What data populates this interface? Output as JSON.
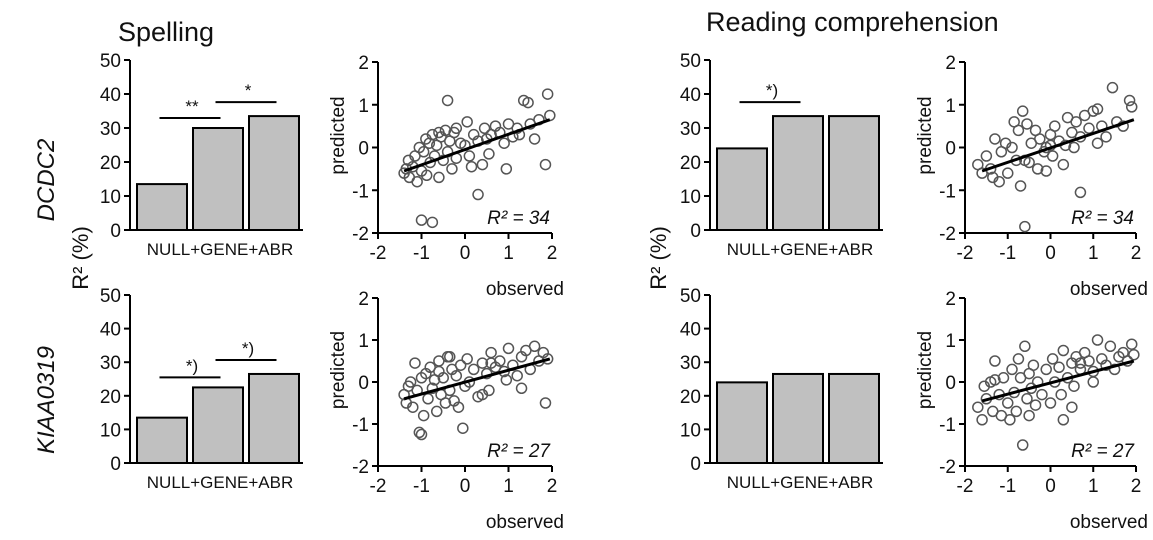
{
  "headings": {
    "left": "Spelling",
    "right": "Reading comprehension"
  },
  "row_labels": [
    "DCDC2",
    "KIAA0319"
  ],
  "shared_ylabel": "R² (%)",
  "colors": {
    "bar_fill": "#c0c0c0",
    "stroke": "#000000",
    "marker": "#555555",
    "background": "#ffffff"
  },
  "chart_data": [
    {
      "type": "bar",
      "panel": "spelling-dcdc2",
      "categories": [
        "NULL",
        "+GENE",
        "+ABR"
      ],
      "values": [
        13.5,
        30,
        33.5
      ],
      "ylim": [
        0,
        50
      ],
      "yticks": [
        0,
        10,
        20,
        30,
        40,
        50
      ],
      "significance": [
        {
          "from": 0,
          "to": 1,
          "label": "**"
        },
        {
          "from": 1,
          "to": 2,
          "label": "*"
        }
      ]
    },
    {
      "type": "scatter",
      "panel": "spelling-dcdc2",
      "xlabel": "observed",
      "ylabel": "predicted",
      "xlim": [
        -2,
        2
      ],
      "ylim": [
        -2,
        2
      ],
      "xticks": [
        -2,
        -1,
        0,
        1,
        2
      ],
      "yticks": [
        -2,
        -1,
        0,
        1,
        2
      ],
      "annotation": "R² = 34",
      "fit": {
        "x": [
          -1.4,
          1.95
        ],
        "y": [
          -0.55,
          0.65
        ]
      },
      "points": [
        [
          -1.4,
          -0.6
        ],
        [
          -1.35,
          -0.5
        ],
        [
          -1.3,
          -0.3
        ],
        [
          -1.28,
          -0.7
        ],
        [
          -1.2,
          -0.45
        ],
        [
          -1.15,
          -0.2
        ],
        [
          -1.1,
          -0.8
        ],
        [
          -1.05,
          0.0
        ],
        [
          -1.0,
          -0.55
        ],
        [
          -0.95,
          -0.1
        ],
        [
          -0.9,
          0.2
        ],
        [
          -0.88,
          -0.65
        ],
        [
          -0.82,
          0.1
        ],
        [
          -0.8,
          -0.35
        ],
        [
          -0.75,
          0.3
        ],
        [
          -0.7,
          -0.2
        ],
        [
          -0.65,
          0.05
        ],
        [
          -0.6,
          -0.7
        ],
        [
          -0.55,
          0.25
        ],
        [
          -0.5,
          -0.3
        ],
        [
          -0.45,
          0.4
        ],
        [
          -0.4,
          -0.1
        ],
        [
          -0.35,
          0.15
        ],
        [
          -0.3,
          -0.5
        ],
        [
          -0.25,
          0.35
        ],
        [
          -0.2,
          -0.25
        ],
        [
          -0.1,
          0.1
        ],
        [
          0.0,
          0.05
        ],
        [
          0.05,
          0.6
        ],
        [
          0.1,
          -0.2
        ],
        [
          0.2,
          0.3
        ],
        [
          0.3,
          0.15
        ],
        [
          0.4,
          -0.4
        ],
        [
          0.45,
          0.45
        ],
        [
          0.5,
          0.2
        ],
        [
          0.55,
          -0.15
        ],
        [
          0.6,
          0.3
        ],
        [
          0.7,
          0.5
        ],
        [
          0.8,
          0.35
        ],
        [
          0.9,
          0.1
        ],
        [
          1.0,
          0.55
        ],
        [
          1.1,
          0.25
        ],
        [
          1.2,
          0.45
        ],
        [
          1.35,
          1.1
        ],
        [
          1.45,
          1.05
        ],
        [
          1.5,
          0.55
        ],
        [
          1.6,
          0.2
        ],
        [
          1.7,
          0.65
        ],
        [
          1.85,
          -0.4
        ],
        [
          1.9,
          1.25
        ],
        [
          1.95,
          0.75
        ],
        [
          -1.0,
          -1.7
        ],
        [
          -0.75,
          -1.75
        ],
        [
          -0.4,
          1.1
        ],
        [
          0.3,
          -1.1
        ],
        [
          -0.6,
          0.35
        ],
        [
          -0.2,
          0.45
        ],
        [
          0.15,
          -0.45
        ],
        [
          0.95,
          -0.5
        ],
        [
          1.25,
          0.3
        ]
      ]
    },
    {
      "type": "bar",
      "panel": "reading-dcdc2",
      "categories": [
        "NULL",
        "+GENE",
        "+ABR"
      ],
      "values": [
        24,
        33.5,
        33.5
      ],
      "ylim": [
        0,
        50
      ],
      "yticks": [
        0,
        10,
        20,
        30,
        40,
        50
      ],
      "significance": [
        {
          "from": 0,
          "to": 1,
          "label": "*)"
        }
      ]
    },
    {
      "type": "scatter",
      "panel": "reading-dcdc2",
      "xlabel": "observed",
      "ylabel": "predicted",
      "xlim": [
        -2,
        2
      ],
      "ylim": [
        -2,
        2
      ],
      "xticks": [
        -2,
        -1,
        0,
        1,
        2
      ],
      "yticks": [
        -2,
        -1,
        0,
        1,
        2
      ],
      "annotation": "R² = 34",
      "fit": {
        "x": [
          -1.6,
          1.95
        ],
        "y": [
          -0.55,
          0.65
        ]
      },
      "points": [
        [
          -1.7,
          -0.4
        ],
        [
          -1.6,
          -0.6
        ],
        [
          -1.5,
          -0.2
        ],
        [
          -1.4,
          -0.5
        ],
        [
          -1.3,
          0.2
        ],
        [
          -1.2,
          -0.8
        ],
        [
          -1.15,
          -0.1
        ],
        [
          -1.05,
          0.1
        ],
        [
          -1.0,
          -0.6
        ],
        [
          -0.9,
          0.0
        ],
        [
          -0.8,
          -0.3
        ],
        [
          -0.75,
          0.4
        ],
        [
          -0.7,
          -0.9
        ],
        [
          -0.65,
          0.85
        ],
        [
          -0.55,
          0.55
        ],
        [
          -0.5,
          -0.35
        ],
        [
          -0.45,
          0.1
        ],
        [
          -0.35,
          0.4
        ],
        [
          -0.3,
          -0.5
        ],
        [
          -0.25,
          0.2
        ],
        [
          -0.15,
          -0.1
        ],
        [
          -0.1,
          0.0
        ],
        [
          0.0,
          0.3
        ],
        [
          0.05,
          -0.2
        ],
        [
          0.1,
          0.5
        ],
        [
          0.2,
          0.15
        ],
        [
          0.3,
          -0.4
        ],
        [
          0.4,
          0.7
        ],
        [
          0.5,
          0.35
        ],
        [
          0.55,
          0.0
        ],
        [
          0.6,
          0.6
        ],
        [
          0.7,
          0.25
        ],
        [
          0.8,
          0.75
        ],
        [
          0.9,
          0.45
        ],
        [
          1.0,
          0.85
        ],
        [
          1.1,
          0.9
        ],
        [
          1.2,
          0.5
        ],
        [
          1.3,
          0.25
        ],
        [
          1.45,
          1.4
        ],
        [
          1.55,
          0.6
        ],
        [
          1.7,
          0.5
        ],
        [
          1.85,
          1.1
        ],
        [
          1.9,
          0.95
        ],
        [
          -0.6,
          -1.85
        ],
        [
          0.7,
          -1.05
        ],
        [
          -0.1,
          -0.55
        ],
        [
          0.35,
          0.05
        ],
        [
          -1.35,
          -0.7
        ],
        [
          -0.85,
          0.6
        ],
        [
          1.1,
          0.1
        ],
        [
          0.0,
          0.05
        ],
        [
          -0.6,
          -0.3
        ]
      ]
    },
    {
      "type": "bar",
      "panel": "spelling-kiaa0319",
      "categories": [
        "NULL",
        "+GENE",
        "+ABR"
      ],
      "values": [
        13.5,
        22.5,
        26.5
      ],
      "ylim": [
        0,
        50
      ],
      "yticks": [
        0,
        10,
        20,
        30,
        40,
        50
      ],
      "significance": [
        {
          "from": 0,
          "to": 1,
          "label": "*)"
        },
        {
          "from": 1,
          "to": 2,
          "label": "*)"
        }
      ]
    },
    {
      "type": "scatter",
      "panel": "spelling-kiaa0319",
      "xlabel": "observed",
      "ylabel": "predicted",
      "xlim": [
        -2,
        2
      ],
      "ylim": [
        -2,
        2
      ],
      "xticks": [
        -2,
        -1,
        0,
        1,
        2
      ],
      "yticks": [
        -2,
        -1,
        0,
        1,
        2
      ],
      "annotation": "R² = 27",
      "fit": {
        "x": [
          -1.4,
          1.95
        ],
        "y": [
          -0.4,
          0.55
        ]
      },
      "points": [
        [
          -1.4,
          -0.3
        ],
        [
          -1.35,
          -0.5
        ],
        [
          -1.3,
          -0.1
        ],
        [
          -1.25,
          0.0
        ],
        [
          -1.2,
          -0.6
        ],
        [
          -1.15,
          0.45
        ],
        [
          -1.1,
          -0.2
        ],
        [
          -1.05,
          -1.2
        ],
        [
          -1.0,
          0.1
        ],
        [
          -0.95,
          -0.8
        ],
        [
          -0.9,
          0.2
        ],
        [
          -0.85,
          -0.4
        ],
        [
          -0.8,
          0.35
        ],
        [
          -0.75,
          -0.15
        ],
        [
          -0.7,
          0.05
        ],
        [
          -0.65,
          -0.7
        ],
        [
          -0.6,
          0.25
        ],
        [
          -0.55,
          -0.3
        ],
        [
          -0.5,
          0.1
        ],
        [
          -0.45,
          -0.5
        ],
        [
          -0.4,
          0.6
        ],
        [
          -0.35,
          -0.2
        ],
        [
          -0.3,
          0.3
        ],
        [
          -0.25,
          -0.45
        ],
        [
          -0.2,
          0.15
        ],
        [
          -0.15,
          -0.6
        ],
        [
          -0.1,
          0.4
        ],
        [
          0.0,
          -0.1
        ],
        [
          0.05,
          0.55
        ],
        [
          0.1,
          0.0
        ],
        [
          0.2,
          0.3
        ],
        [
          0.3,
          -0.35
        ],
        [
          0.4,
          0.45
        ],
        [
          0.5,
          0.2
        ],
        [
          0.55,
          -0.2
        ],
        [
          0.6,
          0.7
        ],
        [
          0.7,
          0.35
        ],
        [
          0.8,
          0.5
        ],
        [
          0.9,
          0.25
        ],
        [
          1.0,
          0.8
        ],
        [
          1.1,
          0.4
        ],
        [
          1.2,
          0.15
        ],
        [
          1.3,
          0.6
        ],
        [
          1.4,
          0.75
        ],
        [
          1.5,
          0.3
        ],
        [
          1.6,
          0.85
        ],
        [
          1.7,
          0.5
        ],
        [
          1.8,
          0.7
        ],
        [
          1.85,
          -0.5
        ],
        [
          1.9,
          0.55
        ],
        [
          -0.05,
          -1.1
        ],
        [
          -1.0,
          -1.25
        ],
        [
          -0.6,
          0.5
        ],
        [
          0.4,
          -0.3
        ],
        [
          0.95,
          0.05
        ],
        [
          -0.35,
          0.6
        ],
        [
          0.6,
          0.45
        ],
        [
          1.3,
          -0.15
        ]
      ]
    },
    {
      "type": "bar",
      "panel": "reading-kiaa0319",
      "categories": [
        "NULL",
        "+GENE",
        "+ABR"
      ],
      "values": [
        24,
        26.5,
        26.5
      ],
      "ylim": [
        0,
        50
      ],
      "yticks": [
        0,
        10,
        20,
        30,
        40,
        50
      ],
      "significance": []
    },
    {
      "type": "scatter",
      "panel": "reading-kiaa0319",
      "xlabel": "observed",
      "ylabel": "predicted",
      "xlim": [
        -2,
        2
      ],
      "ylim": [
        -2,
        2
      ],
      "xticks": [
        -2,
        -1,
        0,
        1,
        2
      ],
      "yticks": [
        -2,
        -1,
        0,
        1,
        2
      ],
      "annotation": "R² = 27",
      "fit": {
        "x": [
          -1.6,
          1.95
        ],
        "y": [
          -0.45,
          0.5
        ]
      },
      "points": [
        [
          -1.7,
          -0.6
        ],
        [
          -1.6,
          -0.9
        ],
        [
          -1.55,
          -0.1
        ],
        [
          -1.5,
          -0.4
        ],
        [
          -1.4,
          0.0
        ],
        [
          -1.35,
          -0.7
        ],
        [
          -1.3,
          0.5
        ],
        [
          -1.2,
          -0.3
        ],
        [
          -1.15,
          -0.8
        ],
        [
          -1.1,
          0.1
        ],
        [
          -1.0,
          -0.5
        ],
        [
          -0.95,
          -0.9
        ],
        [
          -0.9,
          0.3
        ],
        [
          -0.85,
          -0.25
        ],
        [
          -0.8,
          -0.7
        ],
        [
          -0.75,
          0.55
        ],
        [
          -0.7,
          0.1
        ],
        [
          -0.65,
          -1.5
        ],
        [
          -0.6,
          0.85
        ],
        [
          -0.55,
          -0.4
        ],
        [
          -0.5,
          0.2
        ],
        [
          -0.45,
          -0.15
        ],
        [
          -0.4,
          0.4
        ],
        [
          -0.35,
          -0.55
        ],
        [
          -0.3,
          0.0
        ],
        [
          -0.2,
          -0.3
        ],
        [
          -0.1,
          0.3
        ],
        [
          0.0,
          -0.5
        ],
        [
          0.05,
          0.55
        ],
        [
          0.1,
          0.0
        ],
        [
          0.2,
          0.35
        ],
        [
          0.25,
          -0.3
        ],
        [
          0.3,
          0.75
        ],
        [
          0.4,
          0.1
        ],
        [
          0.5,
          0.45
        ],
        [
          0.55,
          -0.1
        ],
        [
          0.6,
          0.6
        ],
        [
          0.7,
          0.3
        ],
        [
          0.8,
          0.7
        ],
        [
          0.9,
          0.5
        ],
        [
          1.0,
          0.25
        ],
        [
          1.1,
          1.0
        ],
        [
          1.2,
          0.55
        ],
        [
          1.3,
          0.4
        ],
        [
          1.4,
          0.85
        ],
        [
          1.5,
          0.3
        ],
        [
          1.6,
          0.6
        ],
        [
          1.7,
          0.7
        ],
        [
          1.8,
          0.5
        ],
        [
          1.9,
          0.9
        ],
        [
          1.95,
          0.65
        ],
        [
          0.3,
          -0.9
        ],
        [
          0.5,
          -0.6
        ],
        [
          -0.5,
          -0.8
        ],
        [
          1.0,
          0.0
        ],
        [
          -1.3,
          0.05
        ],
        [
          0.7,
          0.45
        ]
      ]
    }
  ]
}
